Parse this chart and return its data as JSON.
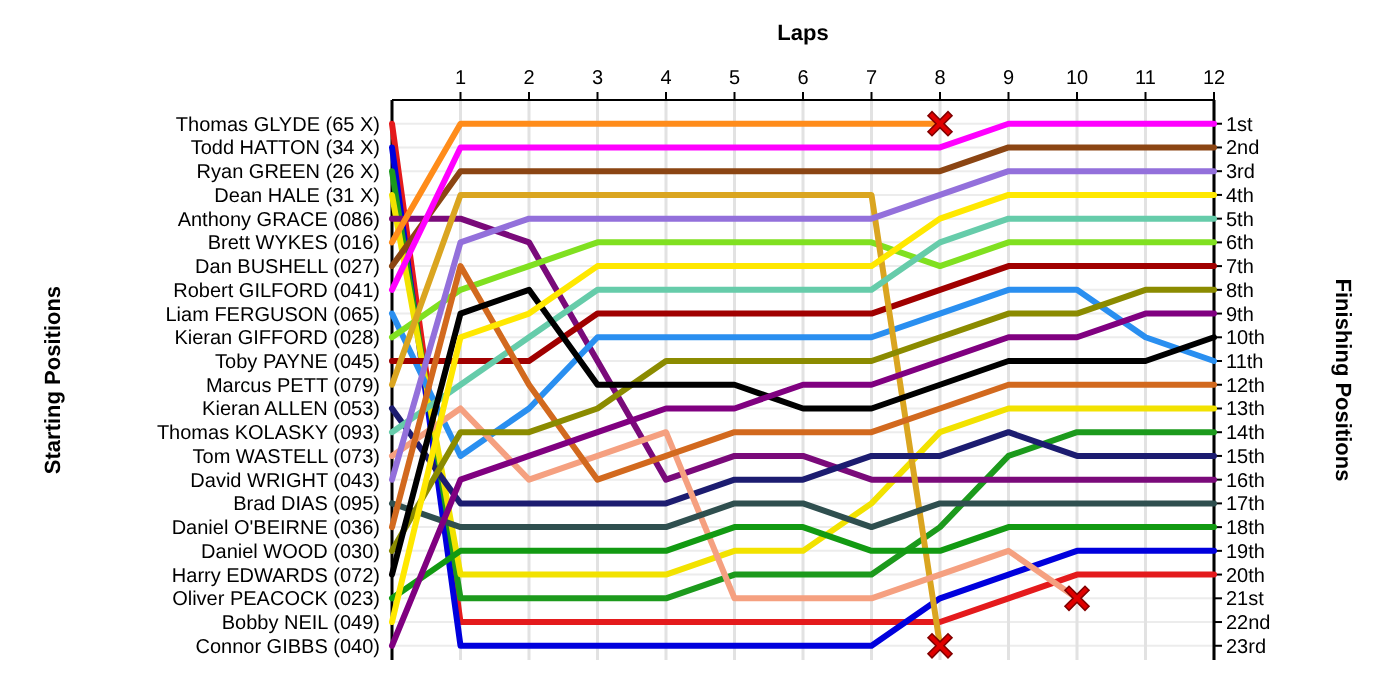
{
  "chart_data": {
    "type": "line",
    "xlabel": "Laps",
    "annotations": [
      "Starting Positions"
    ],
    "y2label": "Finishing Positions",
    "x": [
      0,
      1,
      2,
      3,
      4,
      5,
      6,
      7,
      8,
      9,
      10,
      11,
      12
    ],
    "xlim": [
      0,
      12
    ],
    "xticks": [
      1,
      2,
      3,
      4,
      5,
      6,
      7,
      8,
      9,
      10,
      11,
      12
    ],
    "y2lim": [
      23.6,
      0
    ],
    "y2ticks": [
      {
        "value": 1,
        "label": "1st"
      },
      {
        "value": 2,
        "label": "2nd"
      },
      {
        "value": 3,
        "label": "3rd"
      },
      {
        "value": 4,
        "label": "4th"
      },
      {
        "value": 5,
        "label": "5th"
      },
      {
        "value": 6,
        "label": "6th"
      },
      {
        "value": 7,
        "label": "7th"
      },
      {
        "value": 8,
        "label": "8th"
      },
      {
        "value": 9,
        "label": "9th"
      },
      {
        "value": 10,
        "label": "10th"
      },
      {
        "value": 11,
        "label": "11th"
      },
      {
        "value": 12,
        "label": "12th"
      },
      {
        "value": 13,
        "label": "13th"
      },
      {
        "value": 14,
        "label": "14th"
      },
      {
        "value": 15,
        "label": "15th"
      },
      {
        "value": 16,
        "label": "16th"
      },
      {
        "value": 17,
        "label": "17th"
      },
      {
        "value": 18,
        "label": "18th"
      },
      {
        "value": 19,
        "label": "19th"
      },
      {
        "value": 20,
        "label": "20th"
      },
      {
        "value": 21,
        "label": "21st"
      },
      {
        "value": 22,
        "label": "22nd"
      },
      {
        "value": 23,
        "label": "23rd"
      }
    ],
    "grid": true,
    "line_style": "solid",
    "series": [
      {
        "name": "Thomas GLYDE (65 X)",
        "axis": "y2",
        "color": "#e41a1c",
        "values": [
          1,
          22,
          22,
          22,
          22,
          22,
          22,
          22,
          22,
          21,
          20,
          20,
          20
        ]
      },
      {
        "name": "Todd HATTON (34 X)",
        "axis": "y2",
        "color": "#0000dd",
        "values": [
          2,
          23,
          23,
          23,
          23,
          23,
          23,
          23,
          21,
          20,
          19,
          19,
          19
        ]
      },
      {
        "name": "Ryan GREEN (26 X)",
        "axis": "y2",
        "color": "#1c9a1c",
        "values": [
          3,
          21,
          21,
          21,
          21,
          20,
          20,
          20,
          18,
          15,
          14,
          14,
          14
        ]
      },
      {
        "name": "Dean HALE (31 X)",
        "axis": "y2",
        "color": "#f2e200",
        "values": [
          4,
          20,
          20,
          20,
          20,
          19,
          19,
          17,
          14,
          13,
          13,
          13,
          13
        ]
      },
      {
        "name": "Anthony GRACE (086)",
        "axis": "y2",
        "color": "#7a0a7a",
        "values": [
          5,
          5,
          6,
          11,
          16,
          15,
          15,
          16,
          16,
          16,
          16,
          16,
          16
        ]
      },
      {
        "name": "Brett WYKES (016)",
        "axis": "y2",
        "color": "#ff8c1a",
        "values": [
          6,
          1,
          1,
          1,
          1,
          1,
          1,
          1,
          1,
          null,
          null,
          null,
          null
        ]
      },
      {
        "name": "Dan BUSHELL (027)",
        "axis": "y2",
        "color": "#8b4513",
        "values": [
          7,
          3,
          3,
          3,
          3,
          3,
          3,
          3,
          3,
          2,
          2,
          2,
          2
        ]
      },
      {
        "name": "Robert GILFORD (041)",
        "axis": "y2",
        "color": "#ff00ff",
        "values": [
          8,
          2,
          2,
          2,
          2,
          2,
          2,
          2,
          2,
          1,
          1,
          1,
          1
        ]
      },
      {
        "name": "Liam FERGUSON (065)",
        "axis": "y2",
        "color": "#2a8ff0",
        "values": [
          9,
          15,
          13,
          10,
          10,
          10,
          10,
          10,
          9,
          8,
          8,
          10,
          11
        ]
      },
      {
        "name": "Kieran GIFFORD (028)",
        "axis": "y2",
        "color": "#80e020",
        "values": [
          10,
          8,
          7,
          6,
          6,
          6,
          6,
          6,
          7,
          6,
          6,
          6,
          6
        ]
      },
      {
        "name": "Toby PAYNE (045)",
        "axis": "y2",
        "color": "#a00000",
        "values": [
          11,
          11,
          11,
          9,
          9,
          9,
          9,
          9,
          8,
          7,
          7,
          7,
          7
        ]
      },
      {
        "name": "Marcus PETT (079)",
        "axis": "y2",
        "color": "#daa520",
        "values": [
          12,
          4,
          4,
          4,
          4,
          4,
          4,
          4,
          23,
          null,
          null,
          null,
          null
        ]
      },
      {
        "name": "Kieran ALLEN (053)",
        "axis": "y2",
        "color": "#1c1c70",
        "values": [
          13,
          17,
          17,
          17,
          17,
          16,
          16,
          15,
          15,
          14,
          15,
          15,
          15
        ]
      },
      {
        "name": "Thomas KOLASKY (093)",
        "axis": "y2",
        "color": "#66ccaa",
        "values": [
          14,
          12,
          10,
          8,
          8,
          8,
          8,
          8,
          6,
          5,
          5,
          5,
          5
        ]
      },
      {
        "name": "Tom WASTELL (073)",
        "axis": "y2",
        "color": "#f5a080",
        "values": [
          15,
          13,
          16,
          15,
          14,
          21,
          21,
          21,
          20,
          19,
          21,
          null,
          null
        ]
      },
      {
        "name": "David WRIGHT (043)",
        "axis": "y2",
        "color": "#9370db",
        "values": [
          16,
          6,
          5,
          5,
          5,
          5,
          5,
          5,
          4,
          3,
          3,
          3,
          3
        ]
      },
      {
        "name": "Brad DIAS (095)",
        "axis": "y2",
        "color": "#2f4f4f",
        "values": [
          17,
          18,
          18,
          18,
          18,
          17,
          17,
          18,
          17,
          17,
          17,
          17,
          17
        ]
      },
      {
        "name": "Daniel O'BEIRNE (036)",
        "axis": "y2",
        "color": "#d2691e",
        "values": [
          18,
          7,
          12,
          16,
          15,
          14,
          14,
          14,
          13,
          12,
          12,
          12,
          12
        ]
      },
      {
        "name": "Daniel WOOD (030)",
        "axis": "y2",
        "color": "#8b8b00",
        "values": [
          19,
          14,
          14,
          13,
          11,
          11,
          11,
          11,
          10,
          9,
          9,
          8,
          8
        ]
      },
      {
        "name": "Harry EDWARDS (072)",
        "axis": "y2",
        "color": "#000000",
        "values": [
          20,
          9,
          8,
          12,
          12,
          12,
          13,
          13,
          12,
          11,
          11,
          11,
          10
        ]
      },
      {
        "name": "Oliver PEACOCK (023)",
        "axis": "y2",
        "color": "#129a12",
        "values": [
          21,
          19,
          19,
          19,
          19,
          18,
          18,
          19,
          19,
          18,
          18,
          18,
          18
        ]
      },
      {
        "name": "Bobby NEIL (049)",
        "axis": "y2",
        "color": "#ffe800",
        "values": [
          22,
          10,
          9,
          7,
          7,
          7,
          7,
          7,
          5,
          4,
          4,
          4,
          4
        ]
      },
      {
        "name": "Connor GIBBS (040)",
        "axis": "y2",
        "color": "#800080",
        "values": [
          23,
          16,
          15,
          14,
          13,
          13,
          12,
          12,
          11,
          10,
          10,
          9,
          9
        ]
      },
      {
        "type": "scatter",
        "axis": "y2",
        "marker": "cross",
        "color": "#e00000",
        "values": [
          null,
          null,
          null,
          null,
          null,
          null,
          null,
          null,
          1,
          null,
          21,
          null,
          null
        ]
      },
      {
        "type": "scatter",
        "axis": "y2",
        "marker": "cross",
        "color": "#e00000",
        "values": [
          null,
          null,
          null,
          null,
          null,
          null,
          null,
          null,
          23,
          null,
          null,
          null,
          null
        ]
      }
    ]
  }
}
